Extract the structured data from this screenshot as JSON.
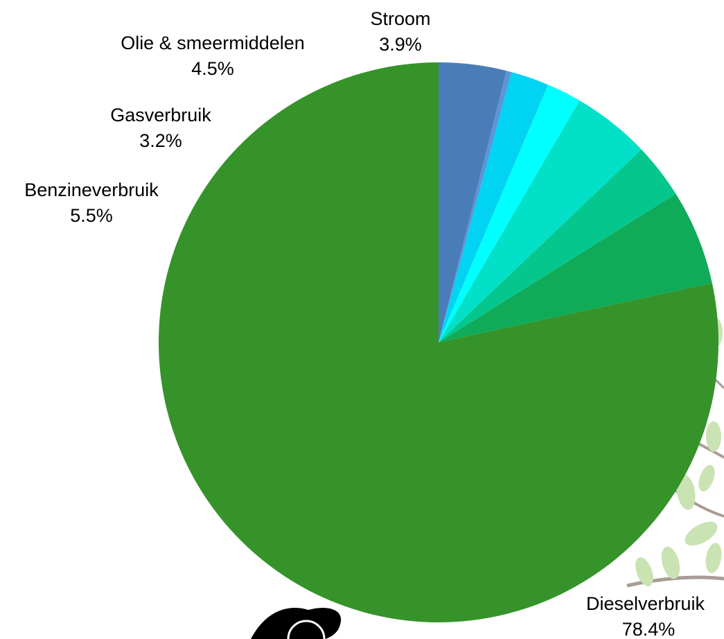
{
  "chart_data": {
    "type": "pie",
    "title": "",
    "start": "top",
    "direction": "counterclockwise",
    "categories": [
      "Dieselverbruik",
      "Benzineverbruik",
      "Gasverbruik",
      "Olie & smeermiddelen",
      "",
      "",
      "",
      "Stroom"
    ],
    "values": [
      78.4,
      5.5,
      3.2,
      4.5,
      2.0,
      2.2,
      0.3,
      3.9
    ],
    "value_labels": [
      "78.4%",
      "5.5%",
      "3.2%",
      "4.5%",
      "",
      "",
      "",
      "3.9%"
    ],
    "colors": [
      "#35932a",
      "#10ab58",
      "#05c78e",
      "#02e0c8",
      "#00ffff",
      "#00d4f2",
      "#5a96d8",
      "#4a7db8"
    ]
  },
  "decoration": {
    "background_art": [
      "leafy-branch-illustration",
      "black-blob-illustration"
    ],
    "colors": {
      "leaf_light": "#c9e3b3",
      "leaf_dark": "#6fae3f",
      "branch": "#a89c94"
    }
  }
}
